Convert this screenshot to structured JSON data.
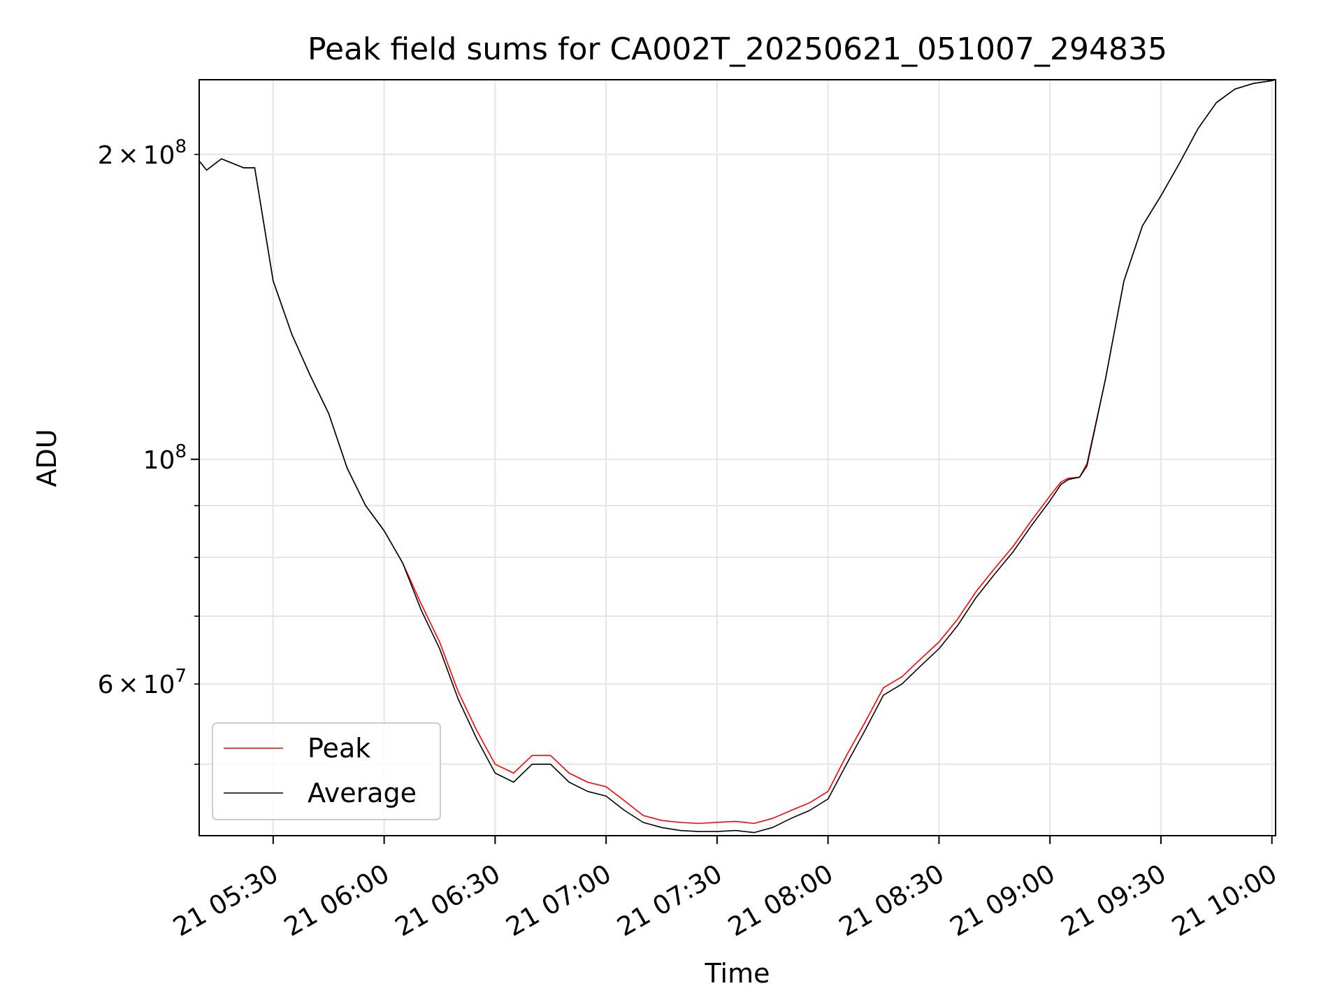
{
  "chart_data": {
    "type": "line",
    "title": "Peak field sums for CA002T_20250621_051007_294835",
    "xlabel": "Time",
    "ylabel": "ADU",
    "yscale": "log",
    "grid": true,
    "legend_position": "lower-left",
    "xlim": [
      "2025-06-21 05:10",
      "2025-06-21 10:01"
    ],
    "ylim": [
      42500000,
      237000000
    ],
    "x_ticks": [
      {
        "value": "2025-06-21 05:30",
        "label": "21 05:30"
      },
      {
        "value": "2025-06-21 06:00",
        "label": "21 06:00"
      },
      {
        "value": "2025-06-21 06:30",
        "label": "21 06:30"
      },
      {
        "value": "2025-06-21 07:00",
        "label": "21 07:00"
      },
      {
        "value": "2025-06-21 07:30",
        "label": "21 07:30"
      },
      {
        "value": "2025-06-21 08:00",
        "label": "21 08:00"
      },
      {
        "value": "2025-06-21 08:30",
        "label": "21 08:30"
      },
      {
        "value": "2025-06-21 09:00",
        "label": "21 09:00"
      },
      {
        "value": "2025-06-21 09:30",
        "label": "21 09:30"
      },
      {
        "value": "2025-06-21 10:00",
        "label": "21 10:00"
      }
    ],
    "y_major_ticks": [
      {
        "value": 100000000,
        "mantissa": "",
        "base": "10",
        "exp": "8"
      }
    ],
    "y_minor_ticks": [
      {
        "value": 200000000,
        "mantissa": "2",
        "base": "10",
        "exp": "8",
        "labeled": true
      },
      {
        "value": 60000000,
        "mantissa": "6",
        "base": "10",
        "exp": "7",
        "labeled": true
      },
      {
        "value": 50000000,
        "labeled": false
      },
      {
        "value": 70000000,
        "labeled": false
      },
      {
        "value": 80000000,
        "labeled": false
      },
      {
        "value": 90000000,
        "labeled": false
      }
    ],
    "x": [
      "2025-06-21 05:10",
      "2025-06-21 05:12",
      "2025-06-21 05:16",
      "2025-06-21 05:19",
      "2025-06-21 05:22",
      "2025-06-21 05:25",
      "2025-06-21 05:30",
      "2025-06-21 05:35",
      "2025-06-21 05:40",
      "2025-06-21 05:45",
      "2025-06-21 05:50",
      "2025-06-21 05:55",
      "2025-06-21 06:00",
      "2025-06-21 06:05",
      "2025-06-21 06:10",
      "2025-06-21 06:15",
      "2025-06-21 06:20",
      "2025-06-21 06:25",
      "2025-06-21 06:30",
      "2025-06-21 06:35",
      "2025-06-21 06:40",
      "2025-06-21 06:45",
      "2025-06-21 06:50",
      "2025-06-21 06:55",
      "2025-06-21 07:00",
      "2025-06-21 07:05",
      "2025-06-21 07:10",
      "2025-06-21 07:15",
      "2025-06-21 07:20",
      "2025-06-21 07:25",
      "2025-06-21 07:30",
      "2025-06-21 07:35",
      "2025-06-21 07:40",
      "2025-06-21 07:45",
      "2025-06-21 07:50",
      "2025-06-21 07:55",
      "2025-06-21 08:00",
      "2025-06-21 08:05",
      "2025-06-21 08:10",
      "2025-06-21 08:15",
      "2025-06-21 08:20",
      "2025-06-21 08:25",
      "2025-06-21 08:30",
      "2025-06-21 08:35",
      "2025-06-21 08:40",
      "2025-06-21 08:45",
      "2025-06-21 08:50",
      "2025-06-21 08:55",
      "2025-06-21 09:00",
      "2025-06-21 09:03",
      "2025-06-21 09:05",
      "2025-06-21 09:08",
      "2025-06-21 09:10",
      "2025-06-21 09:15",
      "2025-06-21 09:20",
      "2025-06-21 09:25",
      "2025-06-21 09:30",
      "2025-06-21 09:35",
      "2025-06-21 09:40",
      "2025-06-21 09:45",
      "2025-06-21 09:50",
      "2025-06-21 09:55",
      "2025-06-21 10:00",
      "2025-06-21 10:01"
    ],
    "series": [
      {
        "name": "Peak",
        "color": "#ff0000",
        "values": [
          197000000,
          193000000,
          198000000,
          196000000,
          194000000,
          194000000,
          150000000,
          133000000,
          121000000,
          111000000,
          98000000,
          90000000,
          85000000,
          79000000,
          72000000,
          66000000,
          59000000,
          54000000,
          50000000,
          49000000,
          51000000,
          51000000,
          49000000,
          48000000,
          47500000,
          46000000,
          44500000,
          44000000,
          43800000,
          43700000,
          43800000,
          43900000,
          43700000,
          44200000,
          45000000,
          45800000,
          47000000,
          51000000,
          55000000,
          59500000,
          61000000,
          63500000,
          66000000,
          69500000,
          74000000,
          78000000,
          82000000,
          87000000,
          92000000,
          95000000,
          95800000,
          96000000,
          99000000,
          120000000,
          150000000,
          170000000,
          182000000,
          196000000,
          212000000,
          225000000,
          232000000,
          235000000,
          236500000,
          237000000
        ]
      },
      {
        "name": "Average",
        "color": "#000000",
        "values": [
          197000000,
          193000000,
          198000000,
          196000000,
          194000000,
          194000000,
          150000000,
          133000000,
          121000000,
          111000000,
          98000000,
          90000000,
          85000000,
          79000000,
          71000000,
          65000000,
          58000000,
          53000000,
          49000000,
          48000000,
          50000000,
          50000000,
          48000000,
          47000000,
          46500000,
          45000000,
          43800000,
          43300000,
          43000000,
          42900000,
          42900000,
          43000000,
          42800000,
          43300000,
          44200000,
          45000000,
          46200000,
          50000000,
          54000000,
          58500000,
          60000000,
          62500000,
          65000000,
          68500000,
          73000000,
          77000000,
          81000000,
          86000000,
          91000000,
          94500000,
          95500000,
          96000000,
          98500000,
          120000000,
          150000000,
          170000000,
          182000000,
          196000000,
          212000000,
          225000000,
          232000000,
          235000000,
          236500000,
          237000000
        ]
      }
    ]
  }
}
